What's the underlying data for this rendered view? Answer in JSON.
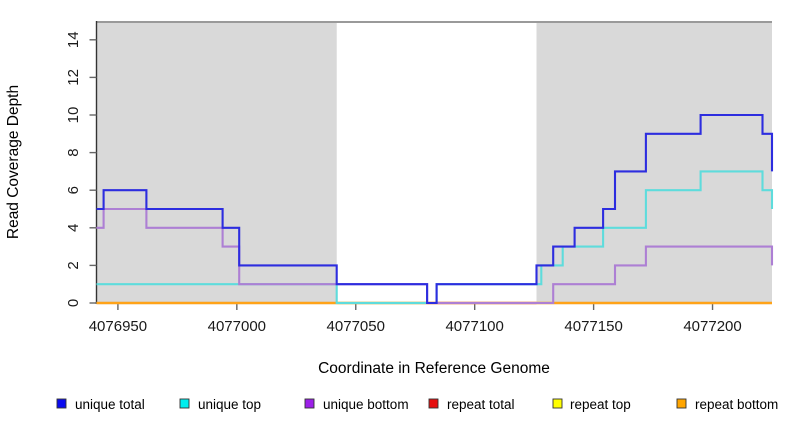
{
  "figure": {
    "xlabel": "Coordinate in Reference Genome",
    "ylabel": "Read Coverage Depth"
  },
  "chart_data": {
    "type": "line",
    "subtype": "step-coverage",
    "title": "",
    "xlabel": "Coordinate in Reference Genome",
    "ylabel": "Read Coverage Depth",
    "xlim": [
      4076941,
      4077225
    ],
    "ylim": [
      0,
      15
    ],
    "x_ticks": [
      4076950,
      4077000,
      4077050,
      4077100,
      4077150,
      4077200
    ],
    "y_ticks": [
      0,
      2,
      4,
      6,
      8,
      10,
      12,
      14
    ],
    "grid": false,
    "legend_position": "bottom",
    "plot_background": "#ffffff",
    "frame_top_color": "#9a9a9a",
    "axis_color": "#333333",
    "tick_color": "#666666",
    "shaded_regions": [
      {
        "name": "repeat-region-left",
        "x0": 4076941,
        "x1": 4077042,
        "color": "#d9d9d9"
      },
      {
        "name": "repeat-region-right",
        "x0": 4077126,
        "x1": 4077225,
        "color": "#d9d9d9"
      }
    ],
    "zero_line_overlays": [
      {
        "x0": 4077042,
        "x1": 4077080,
        "color": "#98cf98"
      },
      {
        "x0": 4077080,
        "x1": 4077126,
        "color": "#cf5a6e"
      }
    ],
    "series": [
      {
        "name": "repeat total",
        "legend_color": "#e60f0f",
        "line_color": "#cf5a6e",
        "points": [
          [
            4076941,
            0
          ],
          [
            4077225,
            0
          ]
        ]
      },
      {
        "name": "repeat top",
        "legend_color": "#ffff00",
        "line_color": "#f2e24a",
        "points": [
          [
            4076941,
            0
          ],
          [
            4077225,
            0
          ]
        ]
      },
      {
        "name": "repeat bottom",
        "legend_color": "#ffa500",
        "line_color": "#ffa318",
        "points": [
          [
            4076941,
            0
          ],
          [
            4077225,
            0
          ]
        ]
      },
      {
        "name": "unique top",
        "legend_color": "#00efef",
        "line_color": "#5edcdc",
        "points": [
          [
            4076941,
            1
          ],
          [
            4077042,
            0
          ],
          [
            4077084,
            1
          ],
          [
            4077128,
            2
          ],
          [
            4077137,
            3
          ],
          [
            4077154,
            4
          ],
          [
            4077172,
            6
          ],
          [
            4077195,
            7
          ],
          [
            4077221,
            6
          ],
          [
            4077225,
            5
          ]
        ]
      },
      {
        "name": "unique bottom",
        "legend_color": "#9c1fe8",
        "line_color": "#ad7fd4",
        "points": [
          [
            4076941,
            4
          ],
          [
            4076944,
            5
          ],
          [
            4076962,
            4
          ],
          [
            4076994,
            3
          ],
          [
            4077001,
            1
          ],
          [
            4077080,
            0
          ],
          [
            4077133,
            1
          ],
          [
            4077159,
            2
          ],
          [
            4077172,
            3
          ],
          [
            4077225,
            2
          ]
        ]
      },
      {
        "name": "unique total",
        "legend_color": "#0b0bef",
        "line_color": "#2d2ddf",
        "points": [
          [
            4076941,
            5
          ],
          [
            4076944,
            6
          ],
          [
            4076962,
            5
          ],
          [
            4076994,
            4
          ],
          [
            4077001,
            2
          ],
          [
            4077042,
            1
          ],
          [
            4077080,
            0
          ],
          [
            4077084,
            1
          ],
          [
            4077126,
            2
          ],
          [
            4077133,
            3
          ],
          [
            4077142,
            4
          ],
          [
            4077154,
            5
          ],
          [
            4077159,
            7
          ],
          [
            4077172,
            9
          ],
          [
            4077195,
            10
          ],
          [
            4077221,
            9
          ],
          [
            4077225,
            7
          ]
        ]
      }
    ],
    "legend_order": [
      "unique total",
      "unique top",
      "unique bottom",
      "repeat total",
      "repeat top",
      "repeat bottom"
    ]
  },
  "legend": {
    "items": [
      {
        "label": "unique total",
        "color": "#0b0bef"
      },
      {
        "label": "unique top",
        "color": "#00efef"
      },
      {
        "label": "unique bottom",
        "color": "#9c1fe8"
      },
      {
        "label": "repeat total",
        "color": "#e60f0f"
      },
      {
        "label": "repeat top",
        "color": "#ffff00"
      },
      {
        "label": "repeat bottom",
        "color": "#ffa500"
      }
    ]
  }
}
